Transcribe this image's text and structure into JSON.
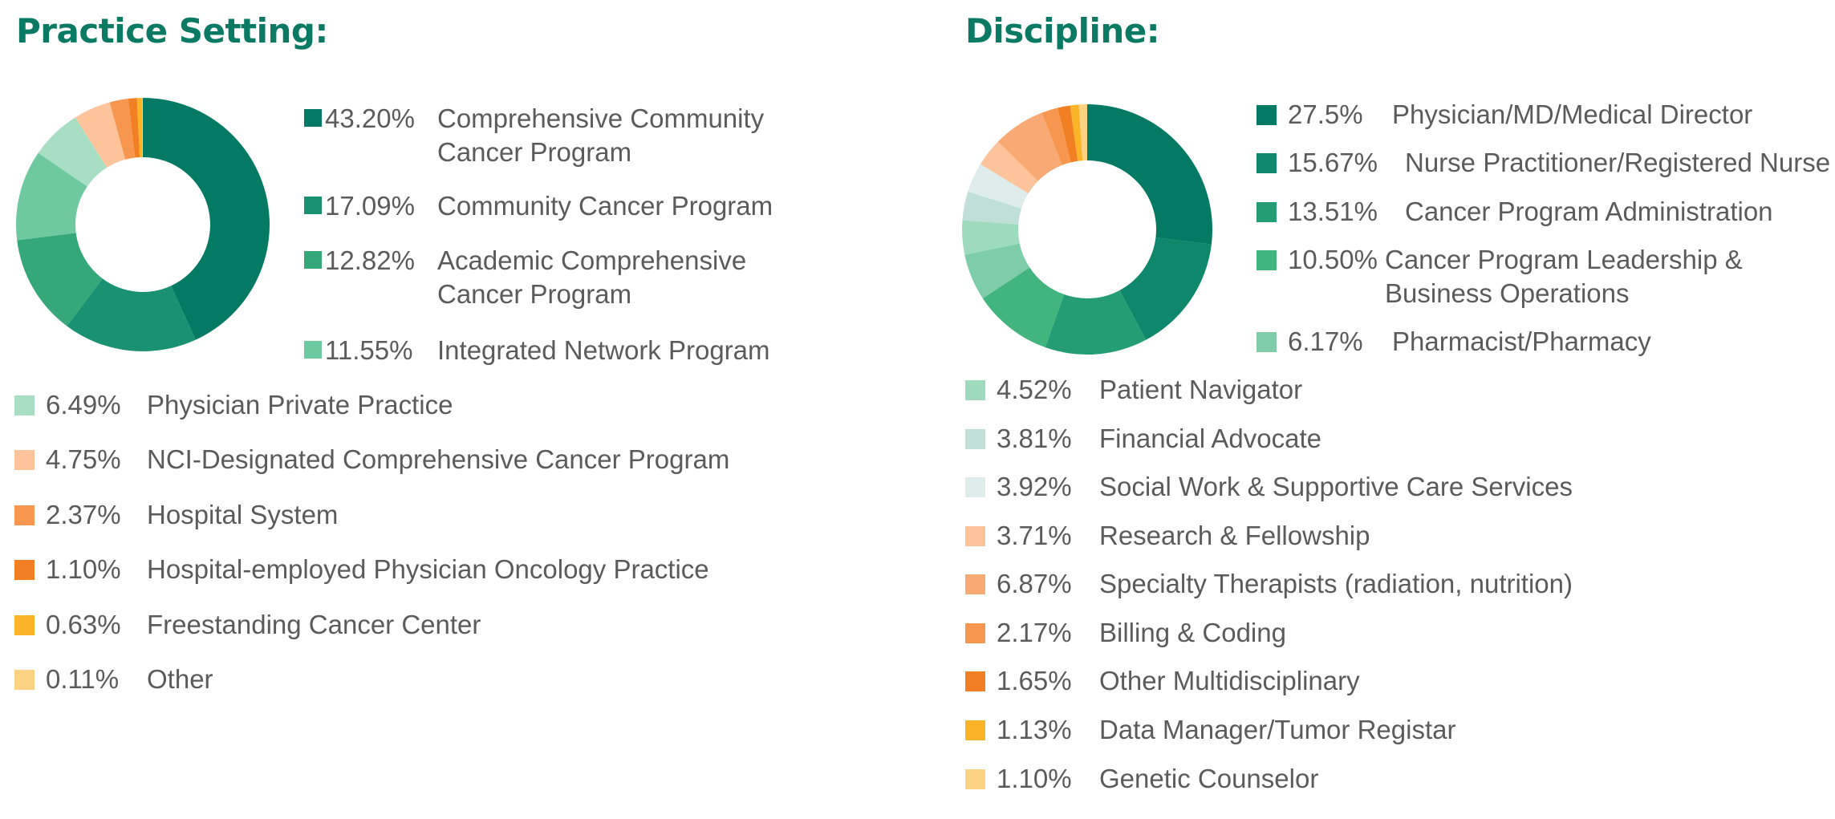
{
  "practice": {
    "title": "Practice Setting:",
    "items": [
      {
        "pct": "43.20%",
        "label": "Comprehensive Community\nCancer Program",
        "color": "#047a64",
        "value": 43.2
      },
      {
        "pct": "17.09%",
        "label": "Community Cancer Program",
        "color": "#1b9173",
        "value": 17.09
      },
      {
        "pct": "12.82%",
        "label": "Academic Comprehensive\nCancer Program",
        "color": "#35a87a",
        "value": 12.82
      },
      {
        "pct": "11.55%",
        "label": "Integrated Network Program",
        "color": "#6fc99f",
        "value": 11.55
      },
      {
        "pct": "6.49%",
        "label": "Physician Private Practice",
        "color": "#a8dec4",
        "value": 6.49
      },
      {
        "pct": "4.75%",
        "label": "NCI-Designated Comprehensive Cancer Program",
        "color": "#fdc49b",
        "value": 4.75
      },
      {
        "pct": "2.37%",
        "label": "Hospital System",
        "color": "#f7974f",
        "value": 2.37
      },
      {
        "pct": "1.10%",
        "label": "Hospital-employed Physician Oncology Practice",
        "color": "#f37f23",
        "value": 1.1
      },
      {
        "pct": "0.63%",
        "label": "Freestanding Cancer Center",
        "color": "#fbb427",
        "value": 0.63
      },
      {
        "pct": "0.11%",
        "label": "Other",
        "color": "#fed283",
        "value": 0.11
      }
    ]
  },
  "discipline": {
    "title": "Discipline:",
    "items": [
      {
        "pct": "27.5%",
        "label": "Physician/MD/Medical Director",
        "color": "#047a64",
        "value": 27.5
      },
      {
        "pct": "15.67%",
        "label": "Nurse Practitioner/Registered Nurse",
        "color": "#0e876a",
        "value": 15.67
      },
      {
        "pct": "13.51%",
        "label": "Cancer Program Administration",
        "color": "#259d74",
        "value": 13.51
      },
      {
        "pct": "10.50%",
        "label": "Cancer Program Leadership &\nBusiness Operations",
        "color": "#42b47d",
        "value": 10.5
      },
      {
        "pct": "6.17%",
        "label": "Pharmacist/Pharmacy",
        "color": "#7fcda8",
        "value": 6.17
      },
      {
        "pct": "4.52%",
        "label": "Patient Navigator",
        "color": "#9edbbd",
        "value": 4.52
      },
      {
        "pct": "3.81%",
        "label": "Financial Advocate",
        "color": "#c0dfd8",
        "value": 3.81
      },
      {
        "pct": "3.92%",
        "label": "Social Work & Supportive Care Services",
        "color": "#deedeb",
        "value": 3.92
      },
      {
        "pct": "3.71%",
        "label": "Research & Fellowship",
        "color": "#fdc49b",
        "value": 3.71
      },
      {
        "pct": "6.87%",
        "label": "Specialty Therapists (radiation, nutrition)",
        "color": "#f9a974",
        "value": 6.87
      },
      {
        "pct": "2.17%",
        "label": "Billing & Coding",
        "color": "#f7974f",
        "value": 2.17
      },
      {
        "pct": "1.65%",
        "label": "Other Multidisciplinary",
        "color": "#f37f23",
        "value": 1.65
      },
      {
        "pct": "1.13%",
        "label": "Data Manager/Tumor Registar",
        "color": "#fbb427",
        "value": 1.13
      },
      {
        "pct": "1.10%",
        "label": "Genetic Counselor",
        "color": "#fed283",
        "value": 1.1
      }
    ]
  },
  "chart_data": [
    {
      "type": "pie",
      "title": "Practice Setting:",
      "categories": [
        "Comprehensive Community Cancer Program",
        "Community Cancer Program",
        "Academic Comprehensive Cancer Program",
        "Integrated Network Program",
        "Physician Private Practice",
        "NCI-Designated Comprehensive Cancer Program",
        "Hospital System",
        "Hospital-employed Physician Oncology Practice",
        "Freestanding Cancer Center",
        "Other"
      ],
      "values": [
        43.2,
        17.09,
        12.82,
        11.55,
        6.49,
        4.75,
        2.37,
        1.1,
        0.63,
        0.11
      ],
      "donut": true,
      "legend_position": "right/below"
    },
    {
      "type": "pie",
      "title": "Discipline:",
      "categories": [
        "Physician/MD/Medical Director",
        "Nurse Practitioner/Registered Nurse",
        "Cancer Program Administration",
        "Cancer Program Leadership & Business Operations",
        "Pharmacist/Pharmacy",
        "Patient Navigator",
        "Financial Advocate",
        "Social Work & Supportive Care Services",
        "Research & Fellowship",
        "Specialty Therapists (radiation, nutrition)",
        "Billing & Coding",
        "Other Multidisciplinary",
        "Data Manager/Tumor Registar",
        "Genetic Counselor"
      ],
      "values": [
        27.5,
        15.67,
        13.51,
        10.5,
        6.17,
        4.52,
        3.81,
        3.92,
        3.71,
        6.87,
        2.17,
        1.65,
        1.13,
        1.1
      ],
      "donut": true,
      "legend_position": "right/below"
    }
  ]
}
